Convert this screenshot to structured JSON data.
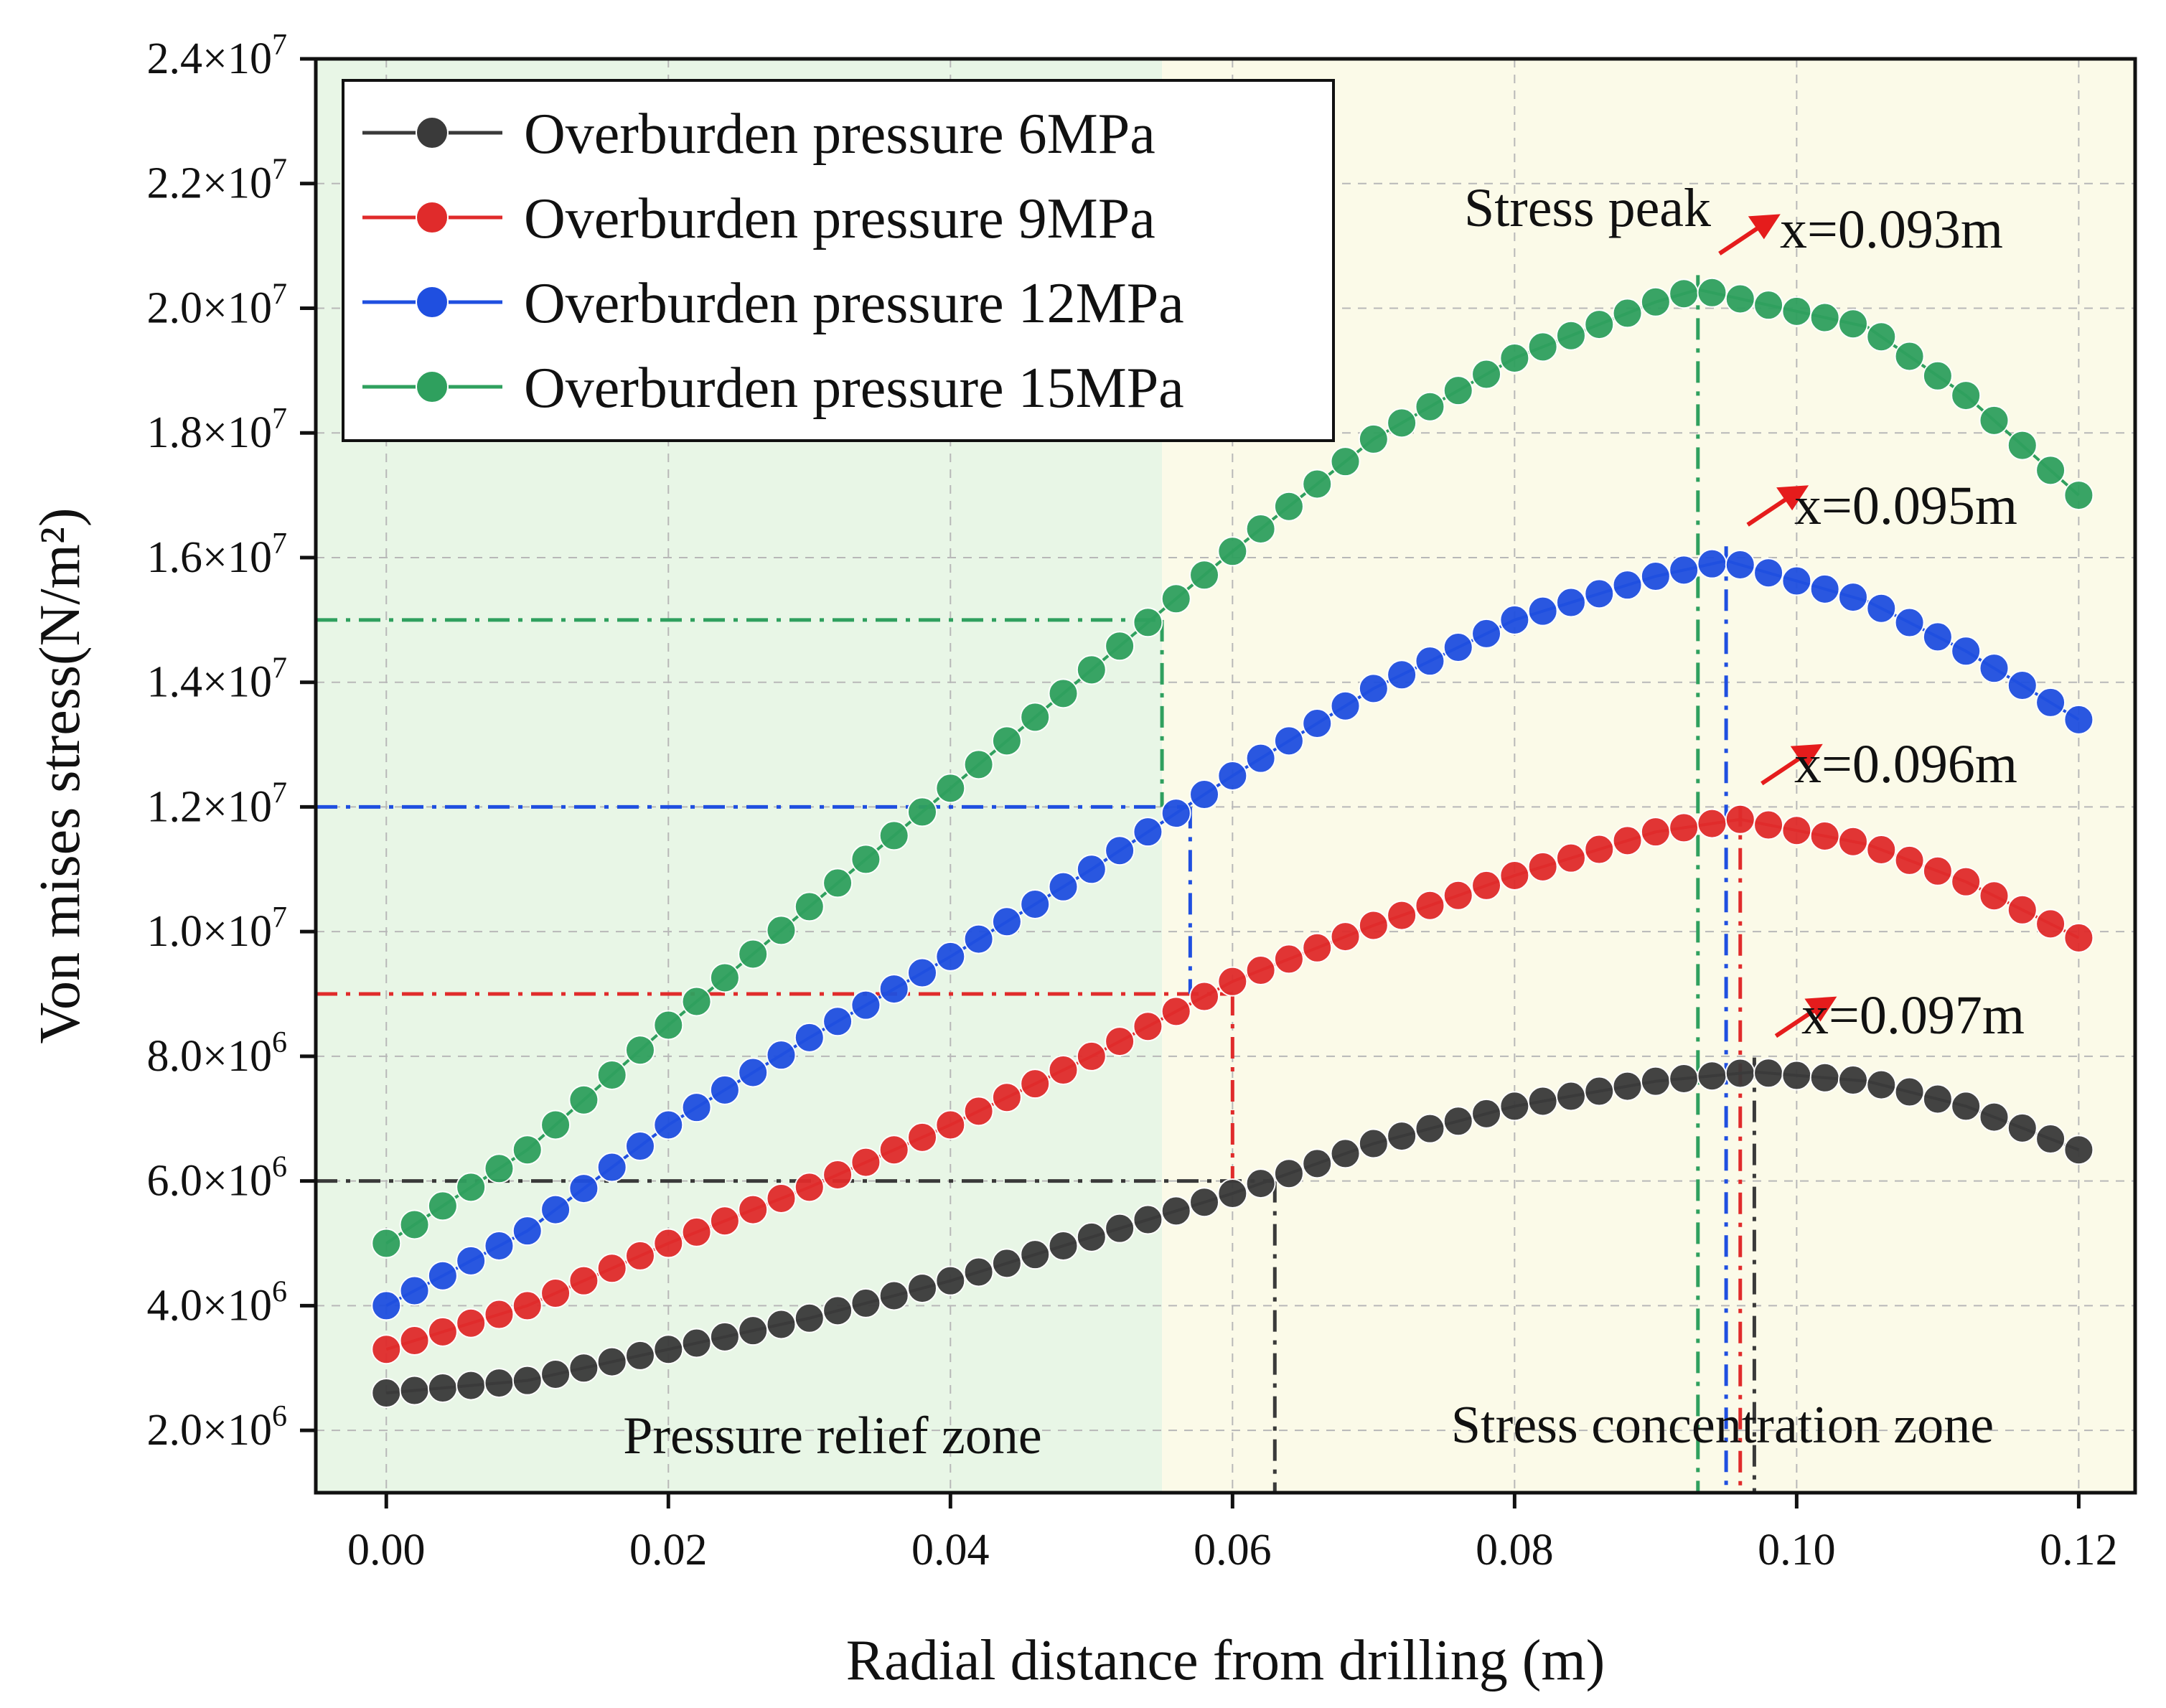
{
  "chart_data": {
    "type": "line",
    "title": "",
    "xlabel": "Radial distance from drilling (m)",
    "ylabel": "Von mises stress(N/m²)",
    "xlim": [
      -0.005,
      0.124
    ],
    "ylim": [
      1000000,
      24000000
    ],
    "grid": true,
    "x_ticks": [
      0.0,
      0.02,
      0.04,
      0.06,
      0.08,
      0.1,
      0.12
    ],
    "x_tick_labels": [
      "0.00",
      "0.02",
      "0.04",
      "0.06",
      "0.08",
      "0.10",
      "0.12"
    ],
    "y_ticks": [
      2000000,
      4000000,
      6000000,
      8000000,
      10000000,
      12000000,
      14000000,
      16000000,
      18000000,
      20000000,
      22000000,
      24000000
    ],
    "y_tick_mantissas": [
      "2.0×10",
      "4.0×10",
      "6.0×10",
      "8.0×10",
      "1.0×10",
      "1.2×10",
      "1.4×10",
      "1.6×10",
      "1.8×10",
      "2.0×10",
      "2.2×10",
      "2.4×10"
    ],
    "y_tick_exponents": [
      "6",
      "6",
      "6",
      "6",
      "7",
      "7",
      "7",
      "7",
      "7",
      "7",
      "7",
      "7"
    ],
    "legend_position": "top-left",
    "zones": [
      {
        "label": "Pressure relief zone",
        "x_range": [
          -0.005,
          0.055
        ],
        "color": "#e8f6e6"
      },
      {
        "label": "Stress concentration zone",
        "x_range": [
          0.055,
          0.124
        ],
        "color": "#fbfae8"
      }
    ],
    "annotations": {
      "stress_peak_label": "Stress peak",
      "peak_labels": [
        "x=0.097m",
        "x=0.096m",
        "x=0.095m",
        "x=0.093m"
      ]
    },
    "series": [
      {
        "name": "Overburden pressure 6MPa",
        "color": "#3a3a3a",
        "threshold": 6000000,
        "intersect_x": 0.063,
        "peak_x": 0.097,
        "x": [
          0.0,
          0.01,
          0.02,
          0.03,
          0.04,
          0.05,
          0.06,
          0.07,
          0.08,
          0.09,
          0.097,
          0.105,
          0.112,
          0.12
        ],
        "values": [
          2600000,
          2800000,
          3300000,
          3800000,
          4400000,
          5100000,
          5800000,
          6600000,
          7200000,
          7600000,
          7750000,
          7600000,
          7200000,
          6500000
        ]
      },
      {
        "name": "Overburden pressure 9MPa",
        "color": "#e02b2b",
        "threshold": 9000000,
        "intersect_x": 0.06,
        "peak_x": 0.096,
        "x": [
          0.0,
          0.01,
          0.02,
          0.03,
          0.04,
          0.05,
          0.06,
          0.07,
          0.08,
          0.09,
          0.096,
          0.105,
          0.112,
          0.12
        ],
        "values": [
          3300000,
          4000000,
          5000000,
          5900000,
          6900000,
          8000000,
          9200000,
          10100000,
          10900000,
          11600000,
          11800000,
          11400000,
          10800000,
          9900000
        ]
      },
      {
        "name": "Overburden pressure 12MPa",
        "color": "#1f4fe0",
        "threshold": 12000000,
        "intersect_x": 0.057,
        "peak_x": 0.095,
        "x": [
          0.0,
          0.01,
          0.02,
          0.03,
          0.04,
          0.05,
          0.06,
          0.07,
          0.08,
          0.09,
          0.095,
          0.105,
          0.112,
          0.12
        ],
        "values": [
          4000000,
          5200000,
          6900000,
          8300000,
          9600000,
          11000000,
          12500000,
          13900000,
          15000000,
          15700000,
          15950000,
          15300000,
          14500000,
          13400000
        ]
      },
      {
        "name": "Overburden pressure 15MPa",
        "color": "#2fa05e",
        "threshold": 15000000,
        "intersect_x": 0.055,
        "peak_x": 0.093,
        "x": [
          0.0,
          0.01,
          0.02,
          0.03,
          0.04,
          0.05,
          0.06,
          0.07,
          0.08,
          0.09,
          0.093,
          0.105,
          0.112,
          0.12
        ],
        "values": [
          5000000,
          6500000,
          8500000,
          10400000,
          12300000,
          14200000,
          16100000,
          17900000,
          19200000,
          20100000,
          20300000,
          19700000,
          18600000,
          17000000
        ]
      }
    ]
  }
}
